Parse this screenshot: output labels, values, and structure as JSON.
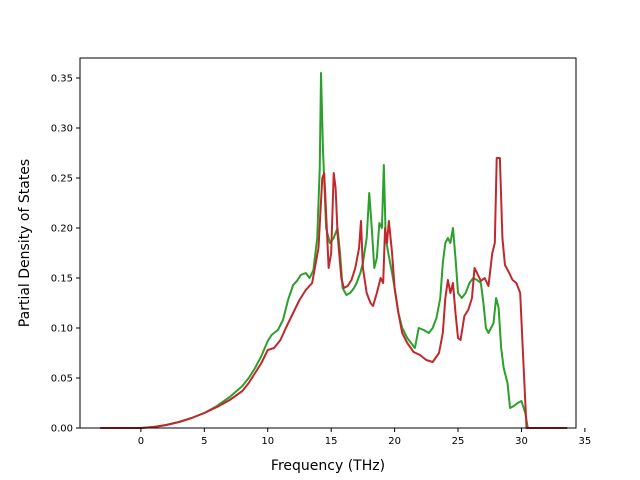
{
  "chart_data": {
    "type": "line",
    "title": "",
    "xlabel": "Frequency (THz)",
    "ylabel": "Partial Density of States",
    "xlim": [
      -4.8,
      34.3
    ],
    "ylim": [
      0,
      0.37
    ],
    "xticks": [
      0,
      5,
      10,
      15,
      20,
      25,
      30,
      35
    ],
    "xtick_labels": [
      "0",
      "5",
      "10",
      "15",
      "20",
      "25",
      "30",
      "35"
    ],
    "yticks": [
      0.0,
      0.05,
      0.1,
      0.15,
      0.2,
      0.25,
      0.3,
      0.35
    ],
    "ytick_labels": [
      "0.00",
      "0.05",
      "0.10",
      "0.15",
      "0.20",
      "0.25",
      "0.30",
      "0.35"
    ],
    "grid": false,
    "legend": "none",
    "series": [
      {
        "color": "#2ca02c",
        "points": [
          [
            -3.2,
            0.0
          ],
          [
            0.0,
            0.0
          ],
          [
            1.0,
            0.001
          ],
          [
            2.0,
            0.003
          ],
          [
            3.0,
            0.006
          ],
          [
            4.0,
            0.01
          ],
          [
            5.0,
            0.015
          ],
          [
            6.0,
            0.022
          ],
          [
            7.0,
            0.031
          ],
          [
            8.0,
            0.042
          ],
          [
            8.5,
            0.05
          ],
          [
            9.0,
            0.06
          ],
          [
            9.5,
            0.072
          ],
          [
            10.0,
            0.087
          ],
          [
            10.3,
            0.093
          ],
          [
            10.8,
            0.098
          ],
          [
            11.2,
            0.108
          ],
          [
            11.6,
            0.128
          ],
          [
            12.0,
            0.143
          ],
          [
            12.3,
            0.147
          ],
          [
            12.6,
            0.153
          ],
          [
            13.0,
            0.155
          ],
          [
            13.3,
            0.15
          ],
          [
            13.6,
            0.158
          ],
          [
            13.9,
            0.19
          ],
          [
            14.1,
            0.26
          ],
          [
            14.2,
            0.355
          ],
          [
            14.35,
            0.28
          ],
          [
            14.6,
            0.2
          ],
          [
            14.9,
            0.185
          ],
          [
            15.2,
            0.19
          ],
          [
            15.5,
            0.2
          ],
          [
            15.7,
            0.175
          ],
          [
            15.9,
            0.14
          ],
          [
            16.2,
            0.133
          ],
          [
            16.5,
            0.135
          ],
          [
            16.8,
            0.14
          ],
          [
            17.0,
            0.145
          ],
          [
            17.3,
            0.155
          ],
          [
            17.5,
            0.165
          ],
          [
            17.8,
            0.19
          ],
          [
            18.0,
            0.235
          ],
          [
            18.2,
            0.2
          ],
          [
            18.4,
            0.16
          ],
          [
            18.6,
            0.17
          ],
          [
            18.8,
            0.205
          ],
          [
            19.0,
            0.2
          ],
          [
            19.15,
            0.263
          ],
          [
            19.3,
            0.19
          ],
          [
            19.5,
            0.175
          ],
          [
            19.8,
            0.155
          ],
          [
            20.0,
            0.14
          ],
          [
            20.3,
            0.115
          ],
          [
            20.6,
            0.1
          ],
          [
            21.0,
            0.09
          ],
          [
            21.3,
            0.085
          ],
          [
            21.6,
            0.08
          ],
          [
            21.9,
            0.1
          ],
          [
            22.3,
            0.098
          ],
          [
            22.7,
            0.095
          ],
          [
            23.0,
            0.1
          ],
          [
            23.3,
            0.11
          ],
          [
            23.6,
            0.13
          ],
          [
            23.8,
            0.165
          ],
          [
            24.0,
            0.185
          ],
          [
            24.2,
            0.19
          ],
          [
            24.4,
            0.185
          ],
          [
            24.6,
            0.2
          ],
          [
            24.8,
            0.17
          ],
          [
            25.0,
            0.135
          ],
          [
            25.3,
            0.13
          ],
          [
            25.6,
            0.135
          ],
          [
            25.9,
            0.145
          ],
          [
            26.2,
            0.15
          ],
          [
            26.5,
            0.148
          ],
          [
            26.8,
            0.145
          ],
          [
            27.0,
            0.125
          ],
          [
            27.2,
            0.1
          ],
          [
            27.4,
            0.095
          ],
          [
            27.6,
            0.1
          ],
          [
            27.8,
            0.105
          ],
          [
            28.0,
            0.13
          ],
          [
            28.2,
            0.12
          ],
          [
            28.4,
            0.08
          ],
          [
            28.6,
            0.06
          ],
          [
            28.9,
            0.045
          ],
          [
            29.1,
            0.02
          ],
          [
            29.4,
            0.022
          ],
          [
            29.7,
            0.025
          ],
          [
            30.0,
            0.027
          ],
          [
            30.3,
            0.015
          ],
          [
            30.5,
            0.0
          ],
          [
            33.6,
            0.0
          ]
        ]
      },
      {
        "color": "#c0282d",
        "points": [
          [
            -3.2,
            0.0
          ],
          [
            0.0,
            0.0
          ],
          [
            1.0,
            0.001
          ],
          [
            2.0,
            0.003
          ],
          [
            3.0,
            0.006
          ],
          [
            4.0,
            0.01
          ],
          [
            5.0,
            0.015
          ],
          [
            6.0,
            0.021
          ],
          [
            7.0,
            0.028
          ],
          [
            8.0,
            0.037
          ],
          [
            8.5,
            0.045
          ],
          [
            9.0,
            0.055
          ],
          [
            9.5,
            0.065
          ],
          [
            10.0,
            0.078
          ],
          [
            10.5,
            0.08
          ],
          [
            11.0,
            0.088
          ],
          [
            11.5,
            0.102
          ],
          [
            12.0,
            0.115
          ],
          [
            12.5,
            0.128
          ],
          [
            13.0,
            0.138
          ],
          [
            13.5,
            0.145
          ],
          [
            14.0,
            0.18
          ],
          [
            14.3,
            0.25
          ],
          [
            14.45,
            0.255
          ],
          [
            14.6,
            0.215
          ],
          [
            14.8,
            0.16
          ],
          [
            15.0,
            0.175
          ],
          [
            15.2,
            0.255
          ],
          [
            15.35,
            0.24
          ],
          [
            15.5,
            0.195
          ],
          [
            15.8,
            0.15
          ],
          [
            16.0,
            0.14
          ],
          [
            16.3,
            0.142
          ],
          [
            16.6,
            0.148
          ],
          [
            16.9,
            0.16
          ],
          [
            17.2,
            0.18
          ],
          [
            17.35,
            0.207
          ],
          [
            17.5,
            0.16
          ],
          [
            17.8,
            0.135
          ],
          [
            18.1,
            0.125
          ],
          [
            18.3,
            0.122
          ],
          [
            18.6,
            0.135
          ],
          [
            18.9,
            0.15
          ],
          [
            19.1,
            0.145
          ],
          [
            19.25,
            0.2
          ],
          [
            19.4,
            0.185
          ],
          [
            19.55,
            0.207
          ],
          [
            19.8,
            0.175
          ],
          [
            20.0,
            0.14
          ],
          [
            20.3,
            0.115
          ],
          [
            20.6,
            0.095
          ],
          [
            21.0,
            0.085
          ],
          [
            21.5,
            0.076
          ],
          [
            22.0,
            0.073
          ],
          [
            22.5,
            0.068
          ],
          [
            23.0,
            0.066
          ],
          [
            23.5,
            0.075
          ],
          [
            23.8,
            0.095
          ],
          [
            24.0,
            0.13
          ],
          [
            24.2,
            0.148
          ],
          [
            24.4,
            0.135
          ],
          [
            24.6,
            0.145
          ],
          [
            24.8,
            0.115
          ],
          [
            25.0,
            0.09
          ],
          [
            25.2,
            0.088
          ],
          [
            25.5,
            0.112
          ],
          [
            25.8,
            0.118
          ],
          [
            26.1,
            0.13
          ],
          [
            26.3,
            0.16
          ],
          [
            26.5,
            0.155
          ],
          [
            26.8,
            0.147
          ],
          [
            27.1,
            0.15
          ],
          [
            27.4,
            0.142
          ],
          [
            27.7,
            0.175
          ],
          [
            27.9,
            0.185
          ],
          [
            28.05,
            0.27
          ],
          [
            28.3,
            0.27
          ],
          [
            28.5,
            0.19
          ],
          [
            28.7,
            0.163
          ],
          [
            29.0,
            0.156
          ],
          [
            29.3,
            0.148
          ],
          [
            29.6,
            0.145
          ],
          [
            29.9,
            0.135
          ],
          [
            30.1,
            0.08
          ],
          [
            30.4,
            0.0
          ],
          [
            33.6,
            0.0
          ]
        ]
      }
    ]
  }
}
